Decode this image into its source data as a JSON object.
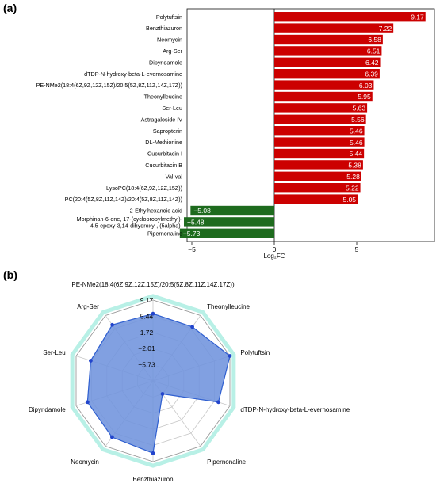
{
  "chart_data": [
    {
      "panel_label": "(a)",
      "type": "bar",
      "orientation": "horizontal",
      "xlabel": "Log₂FC",
      "xticks": [
        -5,
        0,
        5
      ],
      "xlim": [
        -6.3,
        9.6
      ],
      "colors": {
        "positive": "#cc0000",
        "negative": "#1e6b1e"
      },
      "categories": [
        "Polytuftsin",
        "Benzthiazuron",
        "Neomycin",
        "Arg-Ser",
        "Dipyridamole",
        "dTDP-N-hydroxy-beta-L-evernosamine",
        "PE-NMe2(18:4(6Z,9Z,12Z,15Z)/20:5(5Z,8Z,11Z,14Z,17Z))",
        "Theonylleucine",
        "Ser-Leu",
        "Astragaloside IV",
        "Sapropterin",
        "DL-Methionine",
        "Cucurbitacin I",
        "Cucurbitacin B",
        "Val-val",
        "LysoPC(18:4(6Z,9Z,12Z,15Z))",
        "PC(20:4(5Z,8Z,11Z,14Z)/20:4(5Z,8Z,11Z,14Z))",
        "2-Ethylhexanoic acid",
        [
          "Morphinan-6-one, 17-(cyclopropylmethyl)-",
          "4,5-epoxy-3,14-dihydroxy-, (5alpha)-"
        ],
        "Pipernonaline"
      ],
      "values": [
        9.17,
        7.22,
        6.58,
        6.51,
        6.42,
        6.39,
        6.03,
        5.95,
        5.63,
        5.56,
        5.46,
        5.46,
        5.44,
        5.38,
        5.28,
        5.22,
        5.05,
        -5.08,
        -5.48,
        -5.73
      ],
      "value_labels": [
        "9.17",
        "7.22",
        "6.58",
        "6.51",
        "6.42",
        "6.39",
        "6.03",
        "5.95",
        "5.63",
        "5.56",
        "5.46",
        "5.46",
        "5.44",
        "5.38",
        "5.28",
        "5.22",
        "5.05",
        "−5.08",
        "−5.48",
        "−5.73"
      ]
    },
    {
      "panel_label": "(b)",
      "type": "radar",
      "axes": [
        "PE-NMe2(18:4(6Z,9Z,12Z,15Z)/20:5(5Z,8Z,11Z,14Z,17Z))",
        "Theonylleucine",
        "Polytuftsin",
        "dTDP-N-hydroxy-beta-L-evernosamine",
        "Pipernonaline",
        "Benzthiazuron",
        "Neomycin",
        "Dipyridamole",
        "Ser-Leu",
        "Arg-Ser"
      ],
      "values": [
        6.03,
        5.95,
        9.17,
        6.39,
        -5.73,
        7.22,
        6.58,
        6.42,
        5.63,
        6.51
      ],
      "rlim": [
        -9.45,
        9.17
      ],
      "radial_ticks": [
        9.17,
        5.44,
        1.72,
        -2.01,
        -5.73
      ],
      "radial_tick_labels": [
        "9.17",
        "5.44",
        "1.72",
        "−2.01",
        "−5.73"
      ],
      "fill_color": "#6f93dd",
      "line_color": "#2f5fd0",
      "marker_color": "#2244cc",
      "grid_color": "#c8c8c8",
      "halo_color": "#b8f0e6"
    }
  ]
}
